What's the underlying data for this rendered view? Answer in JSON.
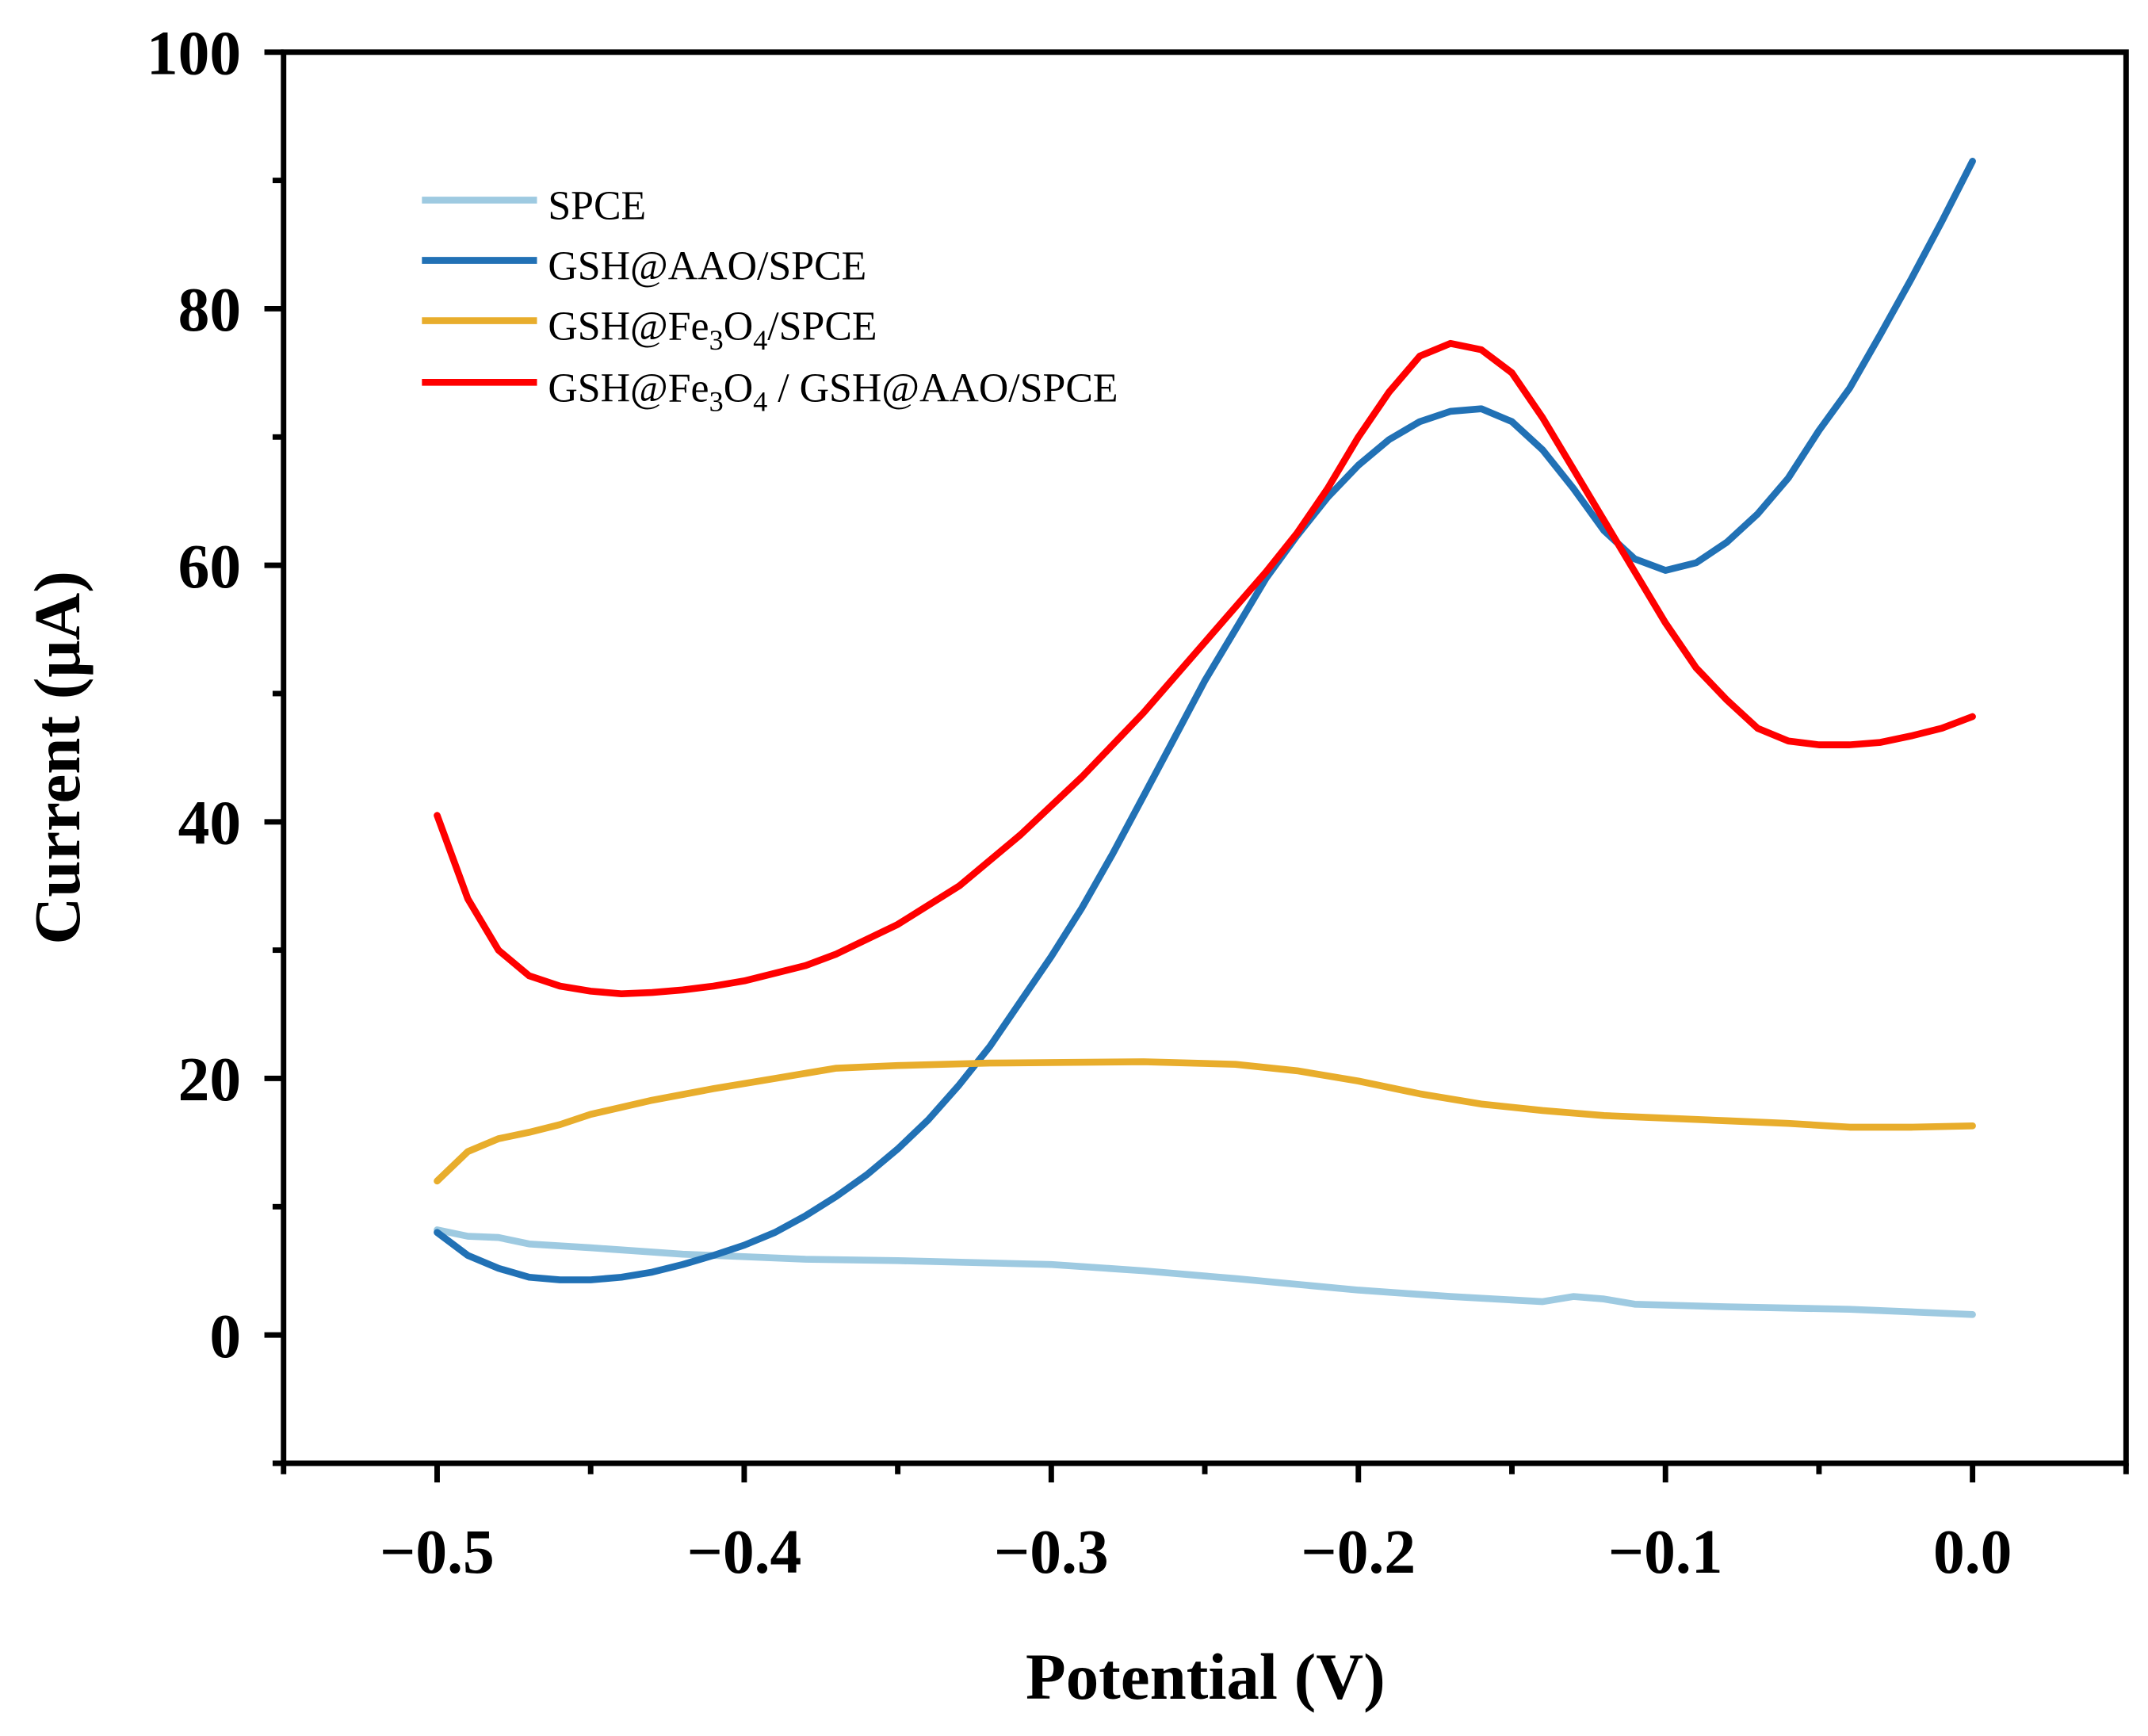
{
  "chart_data": {
    "type": "line",
    "title": "",
    "xlabel": "Potential (V)",
    "ylabel": "Current (μA)",
    "xlim": [
      -0.55,
      0.05
    ],
    "ylim": [
      -10,
      100
    ],
    "xticks": [
      -0.5,
      -0.4,
      -0.3,
      -0.2,
      -0.1,
      0.0
    ],
    "xtick_labels": [
      "−0.5",
      "−0.4",
      "−0.3",
      "−0.2",
      "−0.1",
      "0.0"
    ],
    "yticks": [
      0,
      20,
      40,
      60,
      80,
      100
    ],
    "ytick_labels": [
      "0",
      "20",
      "40",
      "60",
      "80",
      "100"
    ],
    "grid": false,
    "legend_position": "top-left",
    "series": [
      {
        "name": "SPCE",
        "legend": {
          "main": "SPCE"
        },
        "color": "#9ecae1",
        "x": [
          -0.5,
          -0.49,
          -0.48,
          -0.47,
          -0.45,
          -0.42,
          -0.4,
          -0.38,
          -0.35,
          -0.3,
          -0.27,
          -0.24,
          -0.2,
          -0.17,
          -0.14,
          -0.13,
          -0.12,
          -0.11,
          -0.08,
          -0.04,
          0
        ],
        "y": [
          8.2,
          7.7,
          7.6,
          7.1,
          6.8,
          6.3,
          6.1,
          5.9,
          5.8,
          5.5,
          5.0,
          4.4,
          3.5,
          3.0,
          2.6,
          3.0,
          2.8,
          2.4,
          2.2,
          2.0,
          1.6
        ]
      },
      {
        "name": "GSH@AAO/SPCE",
        "legend": {
          "main": "GSH@AAO/SPCE"
        },
        "color": "#2171b5",
        "x": [
          -0.5,
          -0.49,
          -0.48,
          -0.47,
          -0.46,
          -0.45,
          -0.44,
          -0.43,
          -0.42,
          -0.41,
          -0.4,
          -0.39,
          -0.38,
          -0.37,
          -0.36,
          -0.35,
          -0.34,
          -0.33,
          -0.32,
          -0.31,
          -0.3,
          -0.29,
          -0.28,
          -0.27,
          -0.26,
          -0.25,
          -0.24,
          -0.23,
          -0.22,
          -0.21,
          -0.2,
          -0.19,
          -0.18,
          -0.17,
          -0.16,
          -0.15,
          -0.14,
          -0.13,
          -0.12,
          -0.11,
          -0.1,
          -0.09,
          -0.08,
          -0.07,
          -0.06,
          -0.05,
          -0.04,
          -0.03,
          -0.02,
          -0.01,
          0
        ],
        "y": [
          8,
          6.2,
          5.2,
          4.5,
          4.3,
          4.3,
          4.5,
          4.9,
          5.5,
          6.2,
          7,
          8,
          9.3,
          10.8,
          12.5,
          14.5,
          16.8,
          19.5,
          22.5,
          26,
          29.5,
          33.3,
          37.5,
          42,
          46.5,
          51,
          55,
          59,
          62.3,
          65.3,
          67.8,
          69.8,
          71.2,
          72,
          72.2,
          71.2,
          69,
          66,
          62.7,
          60.5,
          59.6,
          60.2,
          61.8,
          64,
          66.8,
          70.5,
          73.8,
          78,
          82.3,
          86.8,
          91.5
        ]
      },
      {
        "name": "GSH@Fe3O4/SPCE",
        "legend": {
          "pre": "GSH@Fe",
          "sub1": "3",
          "mid": "O",
          "sub2": "4",
          "post": "/SPCE"
        },
        "color": "#e8ad2c",
        "x": [
          -0.5,
          -0.49,
          -0.48,
          -0.47,
          -0.46,
          -0.45,
          -0.43,
          -0.41,
          -0.39,
          -0.37,
          -0.35,
          -0.32,
          -0.27,
          -0.24,
          -0.22,
          -0.2,
          -0.18,
          -0.16,
          -0.14,
          -0.12,
          -0.1,
          -0.08,
          -0.06,
          -0.04,
          -0.02,
          0
        ],
        "y": [
          12,
          14.3,
          15.3,
          15.8,
          16.4,
          17.2,
          18.3,
          19.2,
          20.0,
          20.8,
          21.0,
          21.2,
          21.3,
          21.1,
          20.6,
          19.8,
          18.8,
          18.0,
          17.5,
          17.1,
          16.9,
          16.7,
          16.5,
          16.2,
          16.2,
          16.3
        ]
      },
      {
        "name": "GSH@Fe3O4 / GSH@AAO/SPCE",
        "legend": {
          "pre": "GSH@Fe",
          "sub1": "3",
          "mid": "O",
          "sub2": "4",
          "post": " / GSH@AAO/SPCE"
        },
        "color": "#ff0000",
        "x": [
          -0.5,
          -0.49,
          -0.48,
          -0.47,
          -0.46,
          -0.45,
          -0.44,
          -0.43,
          -0.42,
          -0.41,
          -0.4,
          -0.38,
          -0.37,
          -0.35,
          -0.33,
          -0.31,
          -0.29,
          -0.27,
          -0.25,
          -0.23,
          -0.22,
          -0.21,
          -0.2,
          -0.19,
          -0.18,
          -0.17,
          -0.16,
          -0.15,
          -0.14,
          -0.13,
          -0.12,
          -0.11,
          -0.1,
          -0.09,
          -0.08,
          -0.07,
          -0.06,
          -0.05,
          -0.04,
          -0.03,
          -0.02,
          -0.01,
          0
        ],
        "y": [
          40.5,
          34,
          30,
          28,
          27.2,
          26.8,
          26.6,
          26.7,
          26.9,
          27.2,
          27.6,
          28.8,
          29.7,
          32,
          35,
          39,
          43.5,
          48.5,
          54,
          59.5,
          62.5,
          66,
          70,
          73.5,
          76.3,
          77.3,
          76.8,
          75,
          71.5,
          67.5,
          63.5,
          59.5,
          55.5,
          52,
          49.5,
          47.3,
          46.3,
          46,
          46,
          46.2,
          46.7,
          47.3,
          48.2
        ]
      }
    ]
  }
}
